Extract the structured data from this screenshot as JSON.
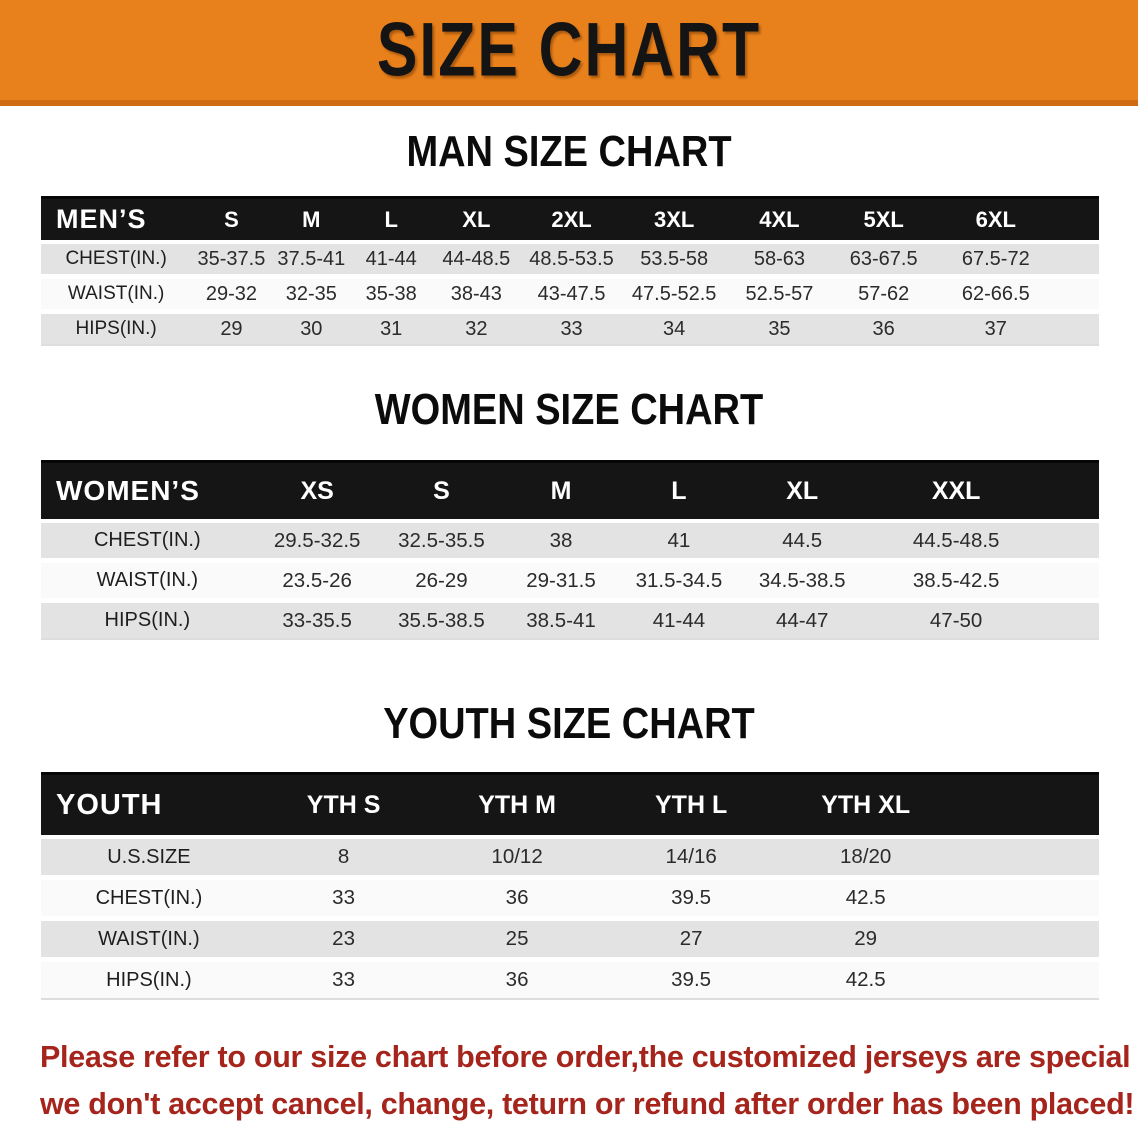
{
  "banner": {
    "title": "SIZE CHART",
    "bg_color": "#E8811B"
  },
  "sections": [
    {
      "heading": "MAN SIZE CHART",
      "table": {
        "header": [
          "MEN’S",
          "S",
          "M",
          "L",
          "XL",
          "2XL",
          "3XL",
          "4XL",
          "5XL",
          "6XL"
        ],
        "rows": [
          {
            "label": "CHEST(IN.)",
            "values": [
              "35-37.5",
              "37.5-41",
              "41-44",
              "44-48.5",
              "48.5-53.5",
              "53.5-58",
              "58-63",
              "63-67.5",
              "67.5-72"
            ]
          },
          {
            "label": "WAIST(IN.)",
            "values": [
              "29-32",
              "32-35",
              "35-38",
              "38-43",
              "43-47.5",
              "47.5-52.5",
              "52.5-57",
              "57-62",
              "62-66.5"
            ]
          },
          {
            "label": "HIPS(IN.)",
            "values": [
              "29",
              "30",
              "31",
              "32",
              "33",
              "34",
              "35",
              "36",
              "37"
            ]
          }
        ]
      }
    },
    {
      "heading": "WOMEN SIZE CHART",
      "table": {
        "header": [
          "WOMEN’S",
          "XS",
          "S",
          "M",
          "L",
          "XL",
          "XXL"
        ],
        "rows": [
          {
            "label": "CHEST(IN.)",
            "values": [
              "29.5-32.5",
              "32.5-35.5",
              "38",
              "41",
              "44.5",
              "44.5-48.5"
            ]
          },
          {
            "label": "WAIST(IN.)",
            "values": [
              "23.5-26",
              "26-29",
              "29-31.5",
              "31.5-34.5",
              "34.5-38.5",
              "38.5-42.5"
            ]
          },
          {
            "label": "HIPS(IN.)",
            "values": [
              "33-35.5",
              "35.5-38.5",
              "38.5-41",
              "41-44",
              "44-47",
              "47-50"
            ]
          }
        ]
      }
    },
    {
      "heading": "YOUTH SIZE CHART",
      "table": {
        "header": [
          "YOUTH",
          "YTH S",
          "YTH M",
          "YTH L",
          "YTH XL"
        ],
        "rows": [
          {
            "label": "U.S.SIZE",
            "values": [
              "8",
              "10/12",
              "14/16",
              "18/20"
            ]
          },
          {
            "label": "CHEST(IN.)",
            "values": [
              "33",
              "36",
              "39.5",
              "42.5"
            ]
          },
          {
            "label": "WAIST(IN.)",
            "values": [
              "23",
              "25",
              "27",
              "29"
            ]
          },
          {
            "label": "HIPS(IN.)",
            "values": [
              "33",
              "36",
              "39.5",
              "42.5"
            ]
          }
        ]
      }
    }
  ],
  "disclaimer": {
    "color": "#A5241C",
    "lines": [
      "Please refer to our size chart before order,the customized jerseys are special products,",
      "we don't accept cancel, change, teturn or refund after order has been placed!"
    ]
  }
}
